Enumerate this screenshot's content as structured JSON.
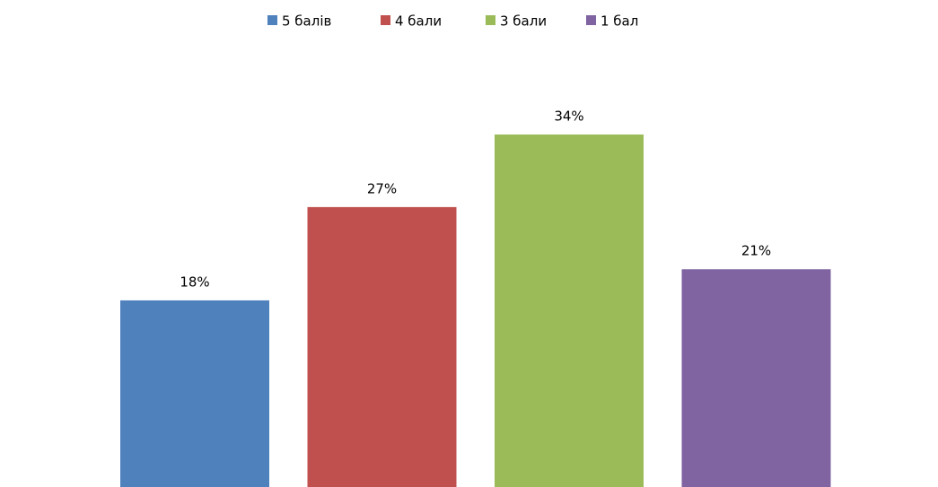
{
  "chart_data": {
    "type": "bar",
    "series": [
      {
        "name": "5 балів",
        "color": "#4f81bd",
        "values": [
          18
        ],
        "value_labels": [
          "18%"
        ]
      },
      {
        "name": "4 бали",
        "color": "#c0504d",
        "values": [
          27
        ],
        "value_labels": [
          "27%"
        ]
      },
      {
        "name": "3 бали",
        "color": "#9bbb59",
        "values": [
          34
        ],
        "value_labels": [
          "34%"
        ]
      },
      {
        "name": "1 бал",
        "color": "#8064a2",
        "values": [
          21
        ],
        "value_labels": [
          "21%"
        ]
      }
    ],
    "legend": "top"
  }
}
